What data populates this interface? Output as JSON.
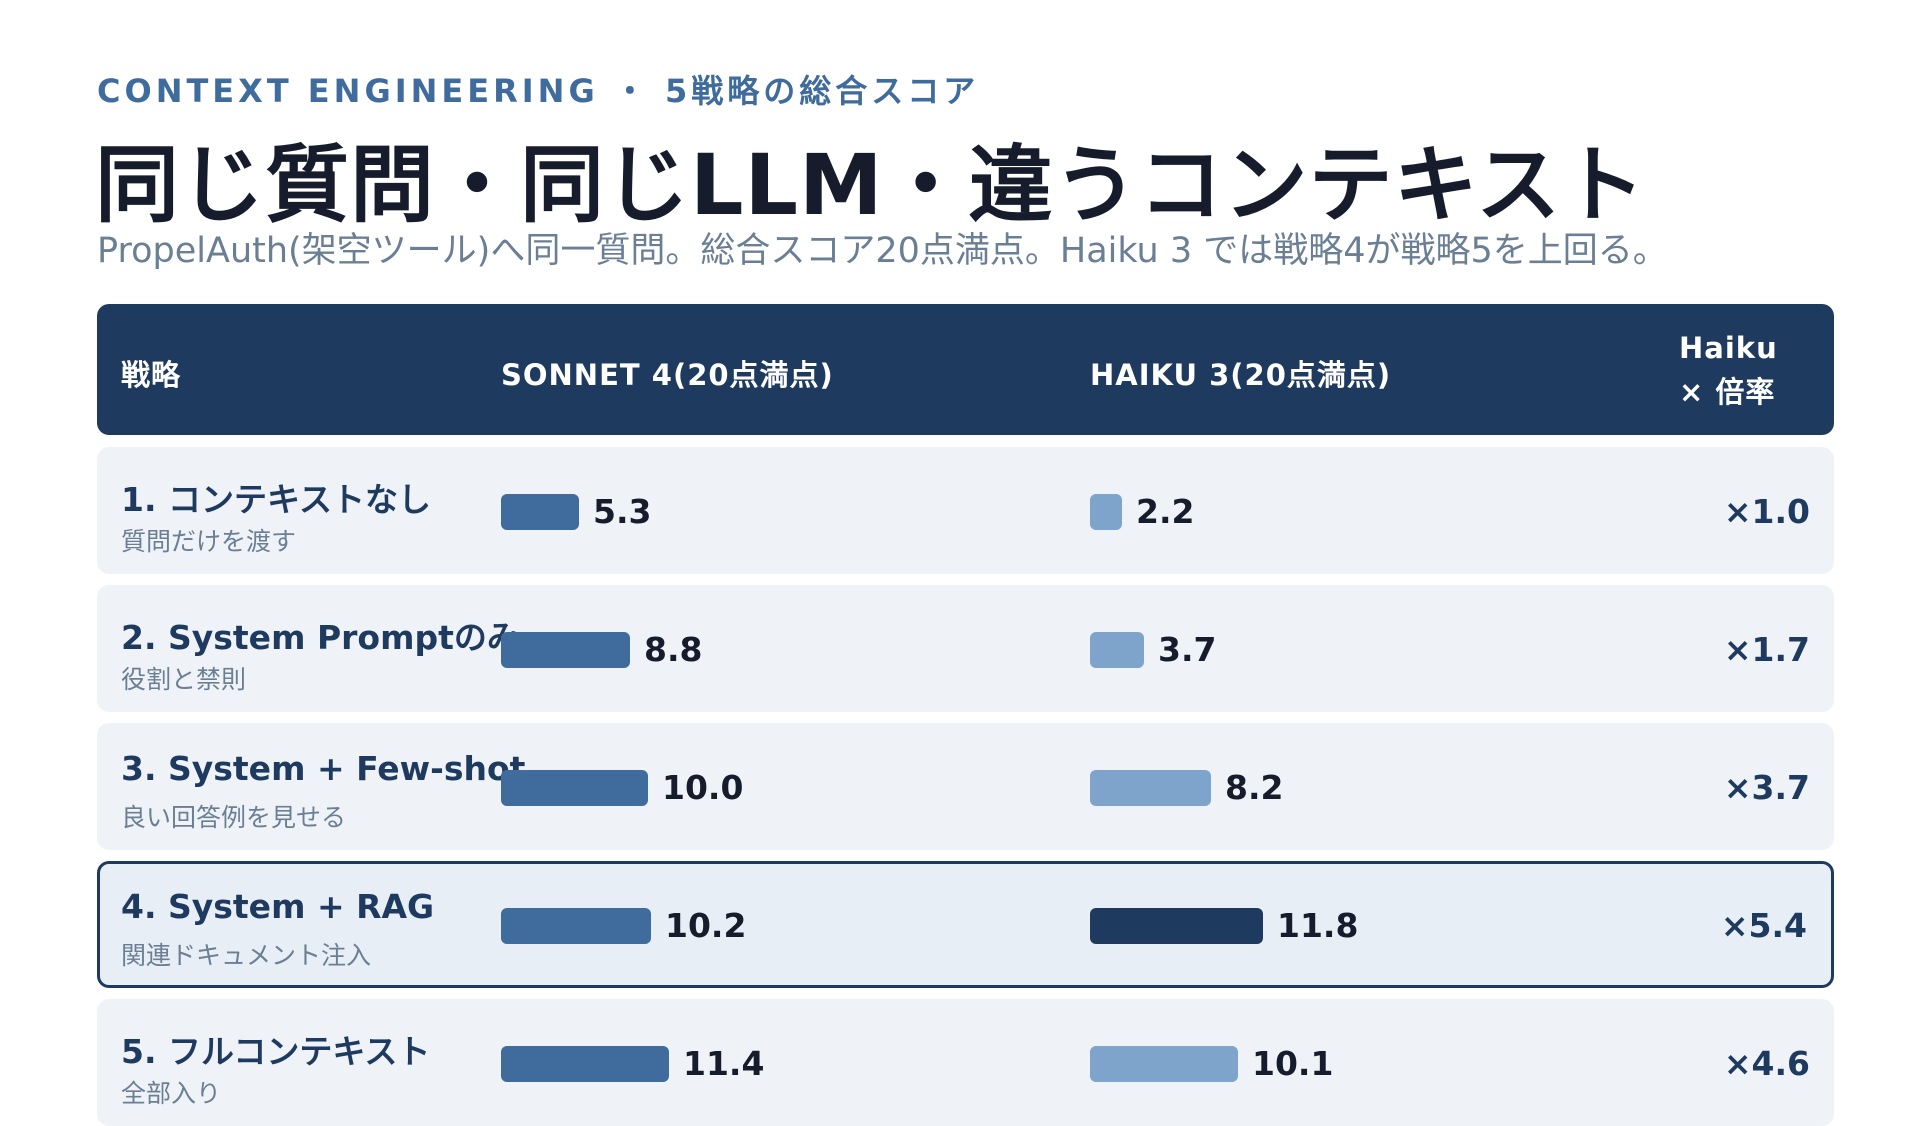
{
  "header": {
    "eyebrow": "CONTEXT ENGINEERING ・ 5戦略の総合スコア",
    "title": "同じ質問・同じLLM・違うコンテキスト",
    "subtitle": "PropelAuth(架空ツール)へ同一質問。総合スコア20点満点。Haiku 3 では戦略4が戦略5を上回る。"
  },
  "table": {
    "columns": {
      "strategy": "戦略",
      "sonnet": "SONNET 4(20点満点)",
      "haiku": "HAIKU 3(20点満点)",
      "multiplier_line1": "Haiku",
      "multiplier_line2": "× 倍率"
    }
  },
  "chart_data": {
    "type": "bar",
    "title": "同じ質問・同じLLM・違うコンテキスト",
    "max": 20,
    "colors": {
      "sonnet": "#3f6c9d",
      "haiku": "#7ea4cc",
      "haiku_best": "#1f3a5f",
      "header_bg": "#1f3a5f"
    },
    "series": [
      {
        "name": "SONNET 4(20点満点)",
        "values": [
          5.3,
          8.8,
          10.0,
          10.2,
          11.4
        ]
      },
      {
        "name": "HAIKU 3(20点満点)",
        "values": [
          2.2,
          3.7,
          8.2,
          11.8,
          10.1
        ]
      }
    ],
    "rows": [
      {
        "name": "1. コンテキストなし",
        "desc": "質問だけを渡す",
        "sonnet": 5.3,
        "sonnet_label": "5.3",
        "haiku": 2.2,
        "haiku_label": "2.2",
        "multiplier": "×1.0",
        "highlight": false
      },
      {
        "name": "2. System Promptのみ",
        "desc": "役割と禁則",
        "sonnet": 8.8,
        "sonnet_label": "8.8",
        "haiku": 3.7,
        "haiku_label": "3.7",
        "multiplier": "×1.7",
        "highlight": false
      },
      {
        "name": "3. System + Few-shot",
        "desc": "良い回答例を見せる",
        "sonnet": 10.0,
        "sonnet_label": "10.0",
        "haiku": 8.2,
        "haiku_label": "8.2",
        "multiplier": "×3.7",
        "highlight": false
      },
      {
        "name": "4. System + RAG",
        "desc": "関連ドキュメント注入",
        "sonnet": 10.2,
        "sonnet_label": "10.2",
        "haiku": 11.8,
        "haiku_label": "11.8",
        "multiplier": "×5.4",
        "highlight": true
      },
      {
        "name": "5. フルコンテキスト",
        "desc": "全部入り",
        "sonnet": 11.4,
        "sonnet_label": "11.4",
        "haiku": 10.1,
        "haiku_label": "10.1",
        "multiplier": "×4.6",
        "highlight": false
      }
    ]
  }
}
